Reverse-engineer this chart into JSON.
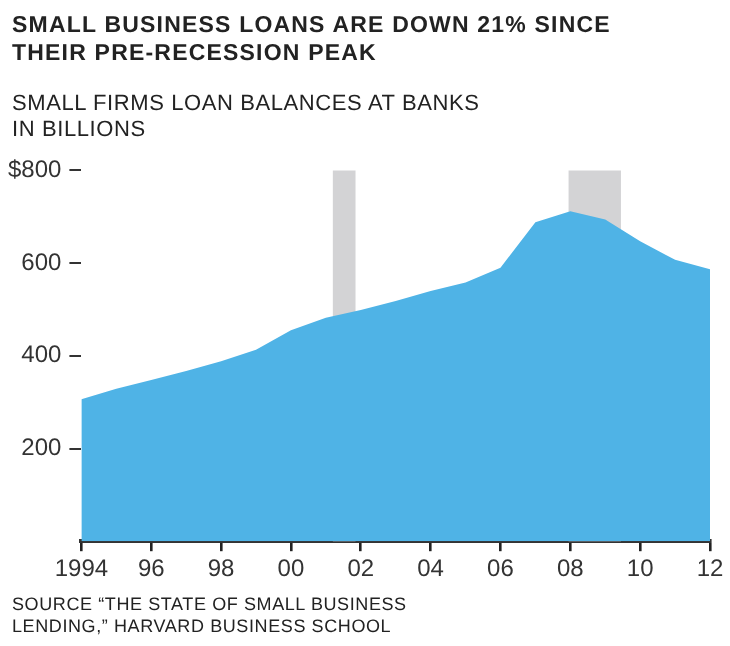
{
  "chart_data": {
    "type": "area",
    "title": "SMALL BUSINESS LOANS ARE DOWN 21% SINCE THEIR PRE-RECESSION PEAK",
    "subtitle": "SMALL FIRMS LOAN BALANCES AT BANKS IN BILLIONS",
    "x": [
      1994,
      1995,
      1996,
      1997,
      1998,
      1999,
      2000,
      2001,
      2002,
      2003,
      2004,
      2005,
      2006,
      2007,
      2008,
      2009,
      2010,
      2011,
      2012
    ],
    "series": [
      {
        "color": "#4fb3e6",
        "values": [
          306,
          329,
          348,
          367,
          388,
          413,
          455,
          482,
          499,
          518,
          540,
          558,
          590,
          688,
          712,
          694,
          647,
          607,
          587
        ]
      }
    ],
    "xlim": [
      1994,
      2012
    ],
    "xticks": [
      {
        "value": 1994,
        "label": "1994"
      },
      {
        "value": 1996,
        "label": "96"
      },
      {
        "value": 1998,
        "label": "98"
      },
      {
        "value": 2000,
        "label": "00"
      },
      {
        "value": 2002,
        "label": "02"
      },
      {
        "value": 2004,
        "label": "04"
      },
      {
        "value": 2006,
        "label": "06"
      },
      {
        "value": 2008,
        "label": "08"
      },
      {
        "value": 2010,
        "label": "10"
      },
      {
        "value": 2012,
        "label": "12"
      }
    ],
    "ylim": [
      0,
      800
    ],
    "yticks": [
      200,
      400,
      600,
      {
        "value": 800,
        "label": "$800"
      }
    ],
    "bands": [
      {
        "axis": "x",
        "from": 2001.2,
        "to": 2001.85,
        "color": "#d3d3d5"
      },
      {
        "axis": "x",
        "from": 2007.95,
        "to": 2009.45,
        "color": "#d3d3d5"
      }
    ],
    "grid": false,
    "legend": false,
    "annotations": [
      "SOURCE “THE STATE OF SMALL BUSINESS LENDING,” HARVARD BUSINESS SCHOOL"
    ]
  }
}
